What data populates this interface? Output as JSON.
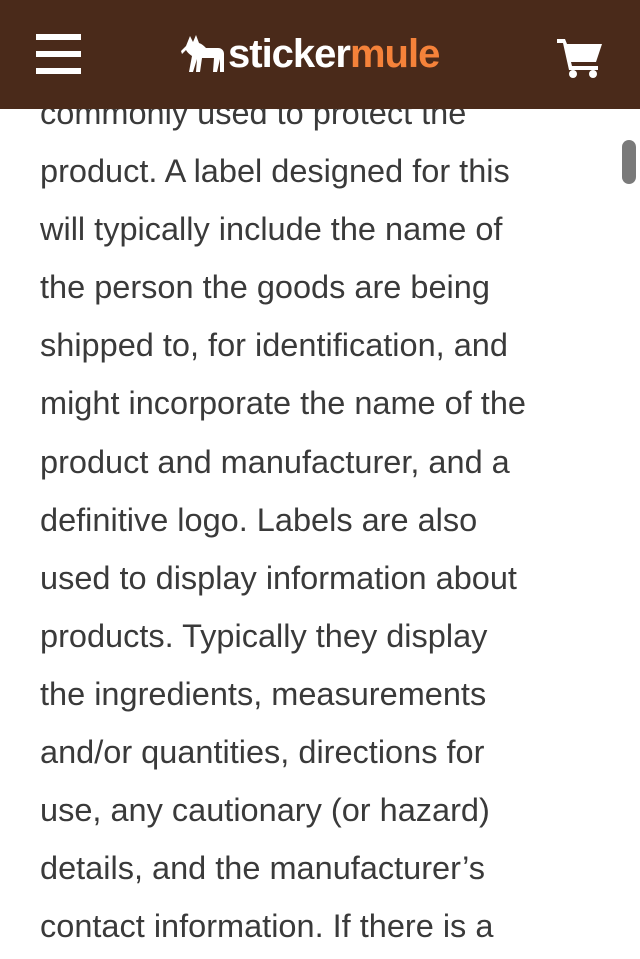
{
  "header": {
    "logo_part1": "sticker",
    "logo_part2": "mule",
    "menu_icon": "hamburger-menu-icon",
    "cart_icon": "shopping-cart-icon",
    "background_color": "#4a2a1a",
    "accent_color": "#f5823a"
  },
  "article": {
    "lines": [
      "commonly used to protect the",
      "product. A label designed for this",
      "will typically include the name of",
      "the person the goods are being",
      "shipped to, for identification, and",
      "might incorporate the name of the",
      "product and manufacturer, and a",
      "definitive logo. Labels are also",
      "used to display information about",
      "products. Typically they display",
      "the ingredients, measurements",
      "and/or quantities, directions for",
      "use, any cautionary (or hazard)",
      "details, and the manufacturer’s",
      "contact information. If there is a"
    ]
  }
}
